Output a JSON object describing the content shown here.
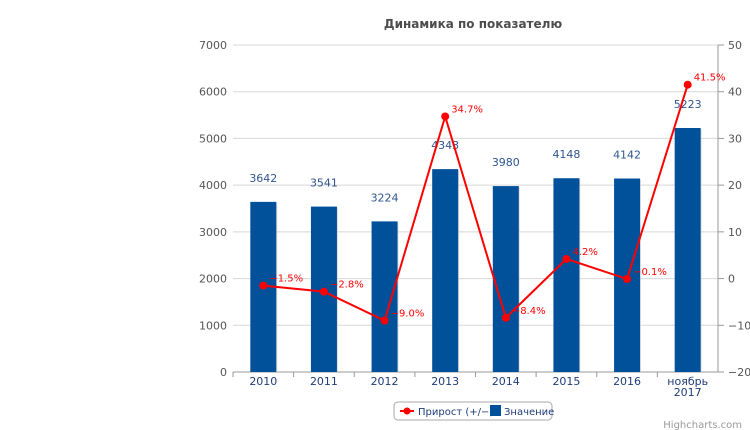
{
  "chart_data": {
    "type": "bar+line",
    "title": "Динамика по показателю",
    "categories": [
      "2010",
      "2011",
      "2012",
      "2013",
      "2014",
      "2015",
      "2016",
      "ноябрь 2017"
    ],
    "series": [
      {
        "name": "Значение",
        "type": "bar",
        "axis": "left",
        "color": "#00519a",
        "values": [
          3642,
          3541,
          3224,
          4343,
          3980,
          4148,
          4142,
          5223
        ]
      },
      {
        "name": "Прирост (+/−)",
        "type": "line",
        "axis": "right",
        "color": "#ff0000",
        "values": [
          -1.5,
          -2.8,
          -9.0,
          34.7,
          -8.4,
          4.2,
          -0.1,
          41.5
        ],
        "labels": [
          "−1.5%",
          "−2.8%",
          "−9.0%",
          "34.7%",
          "−8.4%",
          "4.2%",
          "−0.1%",
          "41.5%"
        ]
      }
    ],
    "yleft": {
      "range": [
        0,
        7000
      ],
      "ticks": [
        "0",
        "1000",
        "2000",
        "3000",
        "4000",
        "5000",
        "6000",
        "7000"
      ]
    },
    "yright": {
      "range": [
        -20,
        50
      ],
      "ticks": [
        "−20",
        "−10",
        "0",
        "10",
        "20",
        "30",
        "40",
        "50"
      ]
    },
    "grid": true,
    "legend": "bottom-center",
    "credits": "Highcharts.com"
  }
}
